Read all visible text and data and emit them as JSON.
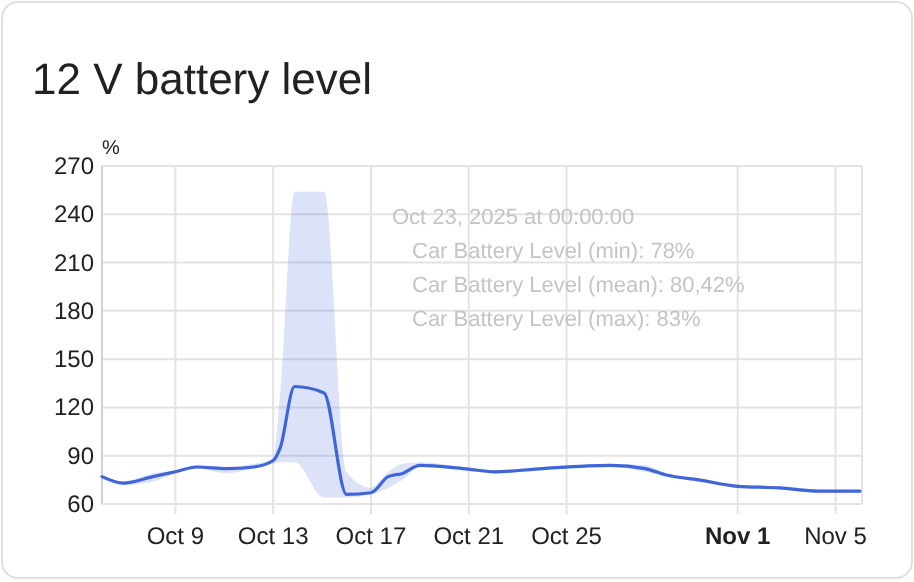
{
  "chart_data": {
    "type": "line",
    "title": "12 V battery level",
    "ylabel": "%",
    "xlim": [
      "2025-10-06",
      "2025-11-06T02:00"
    ],
    "xticks": [
      {
        "value": "2025-10-09",
        "label": "Oct 9"
      },
      {
        "value": "2025-10-13",
        "label": "Oct 13"
      },
      {
        "value": "2025-10-17",
        "label": "Oct 17"
      },
      {
        "value": "2025-10-21",
        "label": "Oct 21"
      },
      {
        "value": "2025-10-25",
        "label": "Oct 25"
      },
      {
        "value": "2025-11-01",
        "label": "Nov 1"
      },
      {
        "value": "2025-11-05",
        "label": "Nov 5"
      }
    ],
    "ylim": [
      60,
      270
    ],
    "yticks": [
      60,
      90,
      120,
      150,
      180,
      210,
      240,
      270
    ],
    "grid": true,
    "marker": "none",
    "line_style": "solid",
    "x": [
      "2025-10-06",
      "2025-10-06T21:00",
      "2025-10-08T02:00",
      "2025-10-09",
      "2025-10-09T21:00",
      "2025-10-11T02:00",
      "2025-10-12T05:00",
      "2025-10-13",
      "2025-10-13T07:00",
      "2025-10-13T21:00",
      "2025-10-15T02:00",
      "2025-10-16",
      "2025-10-17",
      "2025-10-17T17:00",
      "2025-10-18T07:00",
      "2025-10-19",
      "2025-10-20T19:00",
      "2025-10-22T02:00",
      "2025-10-24",
      "2025-10-26T19:00",
      "2025-10-28T05:00",
      "2025-10-29T02:00",
      "2025-10-30T10:00",
      "2025-11-01",
      "2025-11-02T17:00",
      "2025-11-04T07:00",
      "2025-11-06"
    ],
    "series": [
      {
        "color": "#3f66d9",
        "values": [
          77,
          73,
          77,
          80,
          83,
          82,
          83,
          87,
          95,
          133,
          129,
          66,
          67,
          77,
          79,
          84,
          82,
          80,
          82,
          84,
          82,
          78,
          75,
          71,
          70,
          68,
          68
        ],
        "lower": [
          76,
          72,
          74,
          79,
          82,
          79,
          82,
          85,
          86,
          86,
          64,
          64,
          66,
          70,
          75,
          83,
          81,
          79,
          81,
          83,
          80,
          77,
          74,
          70,
          69,
          67,
          67
        ],
        "upper": [
          78,
          74,
          79,
          81,
          84,
          83,
          85,
          88,
          130,
          254,
          254,
          80,
          70,
          80,
          85,
          86,
          83,
          81,
          83,
          85,
          84,
          79,
          76,
          72,
          71,
          69,
          68
        ]
      }
    ],
    "annotations": [
      "Oct 23, 2025 at 00:00:00",
      "Car Battery Level (min): 78%",
      "Car Battery Level (mean): 80,42%",
      "Car Battery Level (max): 83%"
    ]
  }
}
